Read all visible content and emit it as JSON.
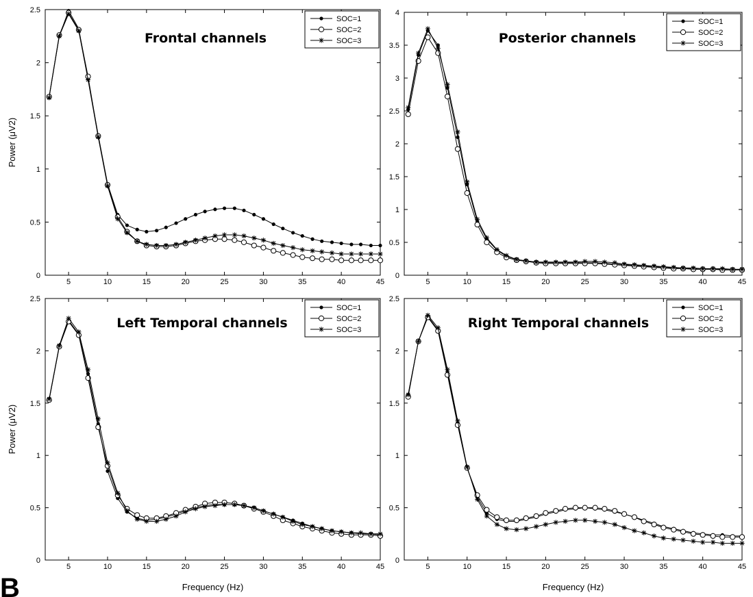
{
  "figure": {
    "panel_letter": "B"
  },
  "chart_data": [
    {
      "type": "line",
      "title": "Frontal channels",
      "xlabel": "",
      "ylabel": "Power (μV2)",
      "xlim": [
        2,
        45
      ],
      "ylim": [
        0,
        2.5
      ],
      "xticks": [
        5,
        10,
        15,
        20,
        25,
        30,
        35,
        40,
        45
      ],
      "yticks": [
        0,
        0.5,
        1,
        1.5,
        2,
        2.5
      ],
      "legend_position": "top-right",
      "x": [
        2.5,
        3.8,
        5,
        6.3,
        7.5,
        8.8,
        10,
        11.3,
        12.5,
        13.8,
        15,
        16.3,
        17.5,
        18.8,
        20,
        21.3,
        22.5,
        23.8,
        25,
        26.3,
        27.5,
        28.8,
        30,
        31.3,
        32.5,
        33.8,
        35,
        36.3,
        37.5,
        38.8,
        40,
        41.3,
        42.5,
        43.8,
        45
      ],
      "series": [
        {
          "name": "SOC=1",
          "marker": "dot",
          "values": [
            1.68,
            2.25,
            2.49,
            2.32,
            1.85,
            1.32,
            0.86,
            0.57,
            0.47,
            0.43,
            0.41,
            0.42,
            0.45,
            0.49,
            0.53,
            0.57,
            0.6,
            0.62,
            0.63,
            0.63,
            0.61,
            0.57,
            0.53,
            0.48,
            0.44,
            0.4,
            0.37,
            0.34,
            0.32,
            0.31,
            0.3,
            0.29,
            0.29,
            0.28,
            0.28
          ]
        },
        {
          "name": "SOC=2",
          "marker": "circle",
          "values": [
            1.68,
            2.26,
            2.47,
            2.31,
            1.87,
            1.31,
            0.85,
            0.55,
            0.41,
            0.32,
            0.28,
            0.27,
            0.27,
            0.28,
            0.3,
            0.32,
            0.33,
            0.34,
            0.34,
            0.33,
            0.31,
            0.28,
            0.26,
            0.23,
            0.21,
            0.19,
            0.17,
            0.16,
            0.15,
            0.15,
            0.14,
            0.14,
            0.14,
            0.14,
            0.14
          ]
        },
        {
          "name": "SOC=3",
          "marker": "star",
          "values": [
            1.67,
            2.25,
            2.46,
            2.3,
            1.84,
            1.3,
            0.84,
            0.53,
            0.4,
            0.32,
            0.29,
            0.28,
            0.28,
            0.29,
            0.31,
            0.33,
            0.35,
            0.37,
            0.38,
            0.38,
            0.37,
            0.35,
            0.33,
            0.3,
            0.28,
            0.26,
            0.24,
            0.23,
            0.22,
            0.21,
            0.2,
            0.2,
            0.2,
            0.2,
            0.2
          ]
        }
      ]
    },
    {
      "type": "line",
      "title": "Posterior channels",
      "xlabel": "",
      "ylabel": "",
      "xlim": [
        2,
        45
      ],
      "ylim": [
        0,
        4
      ],
      "xticks": [
        5,
        10,
        15,
        20,
        25,
        30,
        35,
        40,
        45
      ],
      "yticks": [
        0,
        0.5,
        1,
        1.5,
        2,
        2.5,
        3,
        3.5,
        4
      ],
      "legend_position": "top-right",
      "x": [
        2.5,
        3.8,
        5,
        6.3,
        7.5,
        8.8,
        10,
        11.3,
        12.5,
        13.8,
        15,
        16.3,
        17.5,
        18.8,
        20,
        21.3,
        22.5,
        23.8,
        25,
        26.3,
        27.5,
        28.8,
        30,
        31.3,
        32.5,
        33.8,
        35,
        36.3,
        37.5,
        38.8,
        40,
        41.3,
        42.5,
        43.8,
        45
      ],
      "series": [
        {
          "name": "SOC=1",
          "marker": "dot",
          "values": [
            2.52,
            3.35,
            3.72,
            3.5,
            2.85,
            2.1,
            1.38,
            0.82,
            0.55,
            0.38,
            0.29,
            0.24,
            0.21,
            0.2,
            0.19,
            0.19,
            0.19,
            0.19,
            0.19,
            0.19,
            0.18,
            0.17,
            0.16,
            0.15,
            0.14,
            0.13,
            0.12,
            0.11,
            0.11,
            0.1,
            0.1,
            0.09,
            0.09,
            0.09,
            0.09
          ]
        },
        {
          "name": "SOC=2",
          "marker": "circle",
          "values": [
            2.45,
            3.26,
            3.62,
            3.38,
            2.72,
            1.92,
            1.25,
            0.77,
            0.5,
            0.35,
            0.27,
            0.23,
            0.21,
            0.19,
            0.18,
            0.18,
            0.18,
            0.18,
            0.18,
            0.18,
            0.17,
            0.16,
            0.15,
            0.14,
            0.13,
            0.12,
            0.11,
            0.1,
            0.1,
            0.09,
            0.09,
            0.09,
            0.08,
            0.08,
            0.08
          ]
        },
        {
          "name": "SOC=3",
          "marker": "star",
          "values": [
            2.55,
            3.38,
            3.75,
            3.45,
            2.9,
            2.18,
            1.42,
            0.85,
            0.57,
            0.39,
            0.3,
            0.24,
            0.22,
            0.2,
            0.2,
            0.2,
            0.2,
            0.2,
            0.21,
            0.21,
            0.2,
            0.19,
            0.17,
            0.16,
            0.15,
            0.14,
            0.13,
            0.12,
            0.11,
            0.11,
            0.1,
            0.1,
            0.1,
            0.09,
            0.09
          ]
        }
      ]
    },
    {
      "type": "line",
      "title": "Left Temporal channels",
      "xlabel": "Frequency (Hz)",
      "ylabel": "Power (μV2)",
      "xlim": [
        2,
        45
      ],
      "ylim": [
        0,
        2.5
      ],
      "xticks": [
        5,
        10,
        15,
        20,
        25,
        30,
        35,
        40,
        45
      ],
      "yticks": [
        0,
        0.5,
        1,
        1.5,
        2,
        2.5
      ],
      "legend_position": "top-right",
      "x": [
        2.5,
        3.8,
        5,
        6.3,
        7.5,
        8.8,
        10,
        11.3,
        12.5,
        13.8,
        15,
        16.3,
        17.5,
        18.8,
        20,
        21.3,
        22.5,
        23.8,
        25,
        26.3,
        27.5,
        28.8,
        30,
        31.3,
        32.5,
        33.8,
        35,
        36.3,
        37.5,
        38.8,
        40,
        41.3,
        42.5,
        43.8,
        45
      ],
      "series": [
        {
          "name": "SOC=1",
          "marker": "dot",
          "values": [
            1.53,
            2.04,
            2.29,
            2.16,
            1.78,
            1.3,
            0.85,
            0.59,
            0.46,
            0.4,
            0.38,
            0.39,
            0.41,
            0.44,
            0.47,
            0.5,
            0.52,
            0.53,
            0.53,
            0.53,
            0.52,
            0.5,
            0.47,
            0.44,
            0.41,
            0.38,
            0.35,
            0.32,
            0.3,
            0.28,
            0.27,
            0.26,
            0.25,
            0.25,
            0.24
          ]
        },
        {
          "name": "SOC=2",
          "marker": "circle",
          "values": [
            1.53,
            2.04,
            2.28,
            2.15,
            1.74,
            1.27,
            0.9,
            0.62,
            0.49,
            0.43,
            0.4,
            0.4,
            0.42,
            0.45,
            0.48,
            0.51,
            0.54,
            0.55,
            0.55,
            0.54,
            0.52,
            0.49,
            0.46,
            0.42,
            0.38,
            0.35,
            0.32,
            0.3,
            0.28,
            0.26,
            0.25,
            0.24,
            0.24,
            0.24,
            0.23
          ]
        },
        {
          "name": "SOC=3",
          "marker": "star",
          "values": [
            1.54,
            2.05,
            2.31,
            2.18,
            1.82,
            1.35,
            0.93,
            0.64,
            0.47,
            0.39,
            0.37,
            0.37,
            0.39,
            0.42,
            0.46,
            0.49,
            0.51,
            0.52,
            0.53,
            0.53,
            0.52,
            0.5,
            0.47,
            0.44,
            0.41,
            0.37,
            0.34,
            0.32,
            0.3,
            0.28,
            0.27,
            0.26,
            0.26,
            0.25,
            0.25
          ]
        }
      ]
    },
    {
      "type": "line",
      "title": "Right Temporal channels",
      "xlabel": "Frequency (Hz)",
      "ylabel": "",
      "xlim": [
        2,
        45
      ],
      "ylim": [
        0,
        2.5
      ],
      "xticks": [
        5,
        10,
        15,
        20,
        25,
        30,
        35,
        40,
        45
      ],
      "yticks": [
        0,
        0.5,
        1,
        1.5,
        2,
        2.5
      ],
      "legend_position": "top-right",
      "x": [
        2.5,
        3.8,
        5,
        6.3,
        7.5,
        8.8,
        10,
        11.3,
        12.5,
        13.8,
        15,
        16.3,
        17.5,
        18.8,
        20,
        21.3,
        22.5,
        23.8,
        25,
        26.3,
        27.5,
        28.8,
        30,
        31.3,
        32.5,
        33.8,
        35,
        36.3,
        37.5,
        38.8,
        40,
        41.3,
        42.5,
        43.8,
        45
      ],
      "series": [
        {
          "name": "SOC=1",
          "marker": "dot",
          "values": [
            1.58,
            2.09,
            2.33,
            2.2,
            1.79,
            1.31,
            0.88,
            0.6,
            0.45,
            0.39,
            0.37,
            0.37,
            0.39,
            0.41,
            0.44,
            0.46,
            0.48,
            0.49,
            0.5,
            0.49,
            0.48,
            0.46,
            0.44,
            0.41,
            0.38,
            0.35,
            0.32,
            0.3,
            0.28,
            0.26,
            0.25,
            0.24,
            0.24,
            0.23,
            0.23
          ]
        },
        {
          "name": "SOC=2",
          "marker": "circle",
          "values": [
            1.56,
            2.09,
            2.32,
            2.19,
            1.77,
            1.29,
            0.88,
            0.62,
            0.48,
            0.41,
            0.38,
            0.38,
            0.4,
            0.42,
            0.45,
            0.47,
            0.49,
            0.5,
            0.5,
            0.5,
            0.49,
            0.47,
            0.44,
            0.41,
            0.37,
            0.34,
            0.31,
            0.29,
            0.27,
            0.25,
            0.24,
            0.23,
            0.22,
            0.22,
            0.22
          ]
        },
        {
          "name": "SOC=3",
          "marker": "star",
          "values": [
            1.58,
            2.09,
            2.34,
            2.22,
            1.82,
            1.33,
            0.89,
            0.58,
            0.42,
            0.34,
            0.3,
            0.29,
            0.3,
            0.32,
            0.34,
            0.36,
            0.37,
            0.38,
            0.38,
            0.37,
            0.36,
            0.34,
            0.31,
            0.28,
            0.26,
            0.23,
            0.21,
            0.2,
            0.19,
            0.18,
            0.17,
            0.17,
            0.16,
            0.16,
            0.16
          ]
        }
      ]
    }
  ]
}
